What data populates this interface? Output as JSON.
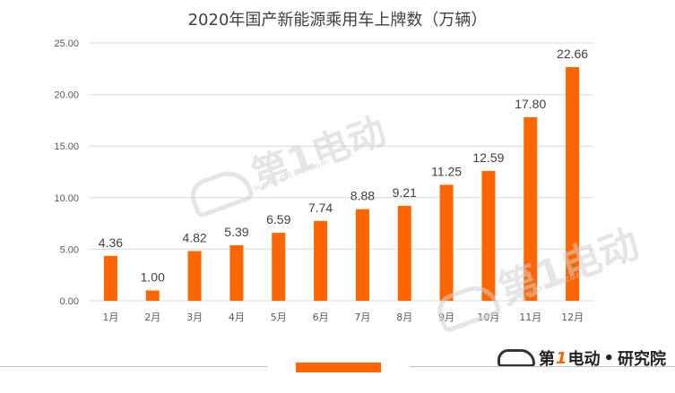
{
  "title": "2020年国产新能源乘用车上牌数（万辆）",
  "colors": {
    "bar": "#FF6600",
    "grid": "#D9D9D9",
    "text": "#404040",
    "axis_text": "#595959",
    "decor_bar": "#FF6600"
  },
  "watermark": {
    "text": "第1电动",
    "url": "www.D1EV.com"
  },
  "brand": {
    "pre": "第",
    "one": "1",
    "post": "电动",
    "dot": "•",
    "suffix": "研究院"
  },
  "chart_data": {
    "type": "bar",
    "title": "2020年国产新能源乘用车上牌数（万辆）",
    "categories": [
      "1月",
      "2月",
      "3月",
      "4月",
      "5月",
      "6月",
      "7月",
      "8月",
      "9月",
      "10月",
      "11月",
      "12月"
    ],
    "values": [
      4.36,
      1.0,
      4.82,
      5.39,
      6.59,
      7.74,
      8.88,
      9.21,
      11.25,
      12.59,
      17.8,
      22.66
    ],
    "value_labels": [
      "4.36",
      "1.00",
      "4.82",
      "5.39",
      "6.59",
      "7.74",
      "8.88",
      "9.21",
      "11.25",
      "12.59",
      "17.80",
      "22.66"
    ],
    "ylim": [
      0,
      25
    ],
    "yticks": [
      "0.00",
      "5.00",
      "10.00",
      "15.00",
      "20.00",
      "25.00"
    ],
    "grid": true,
    "legend": "none",
    "xlabel": "",
    "ylabel": ""
  }
}
